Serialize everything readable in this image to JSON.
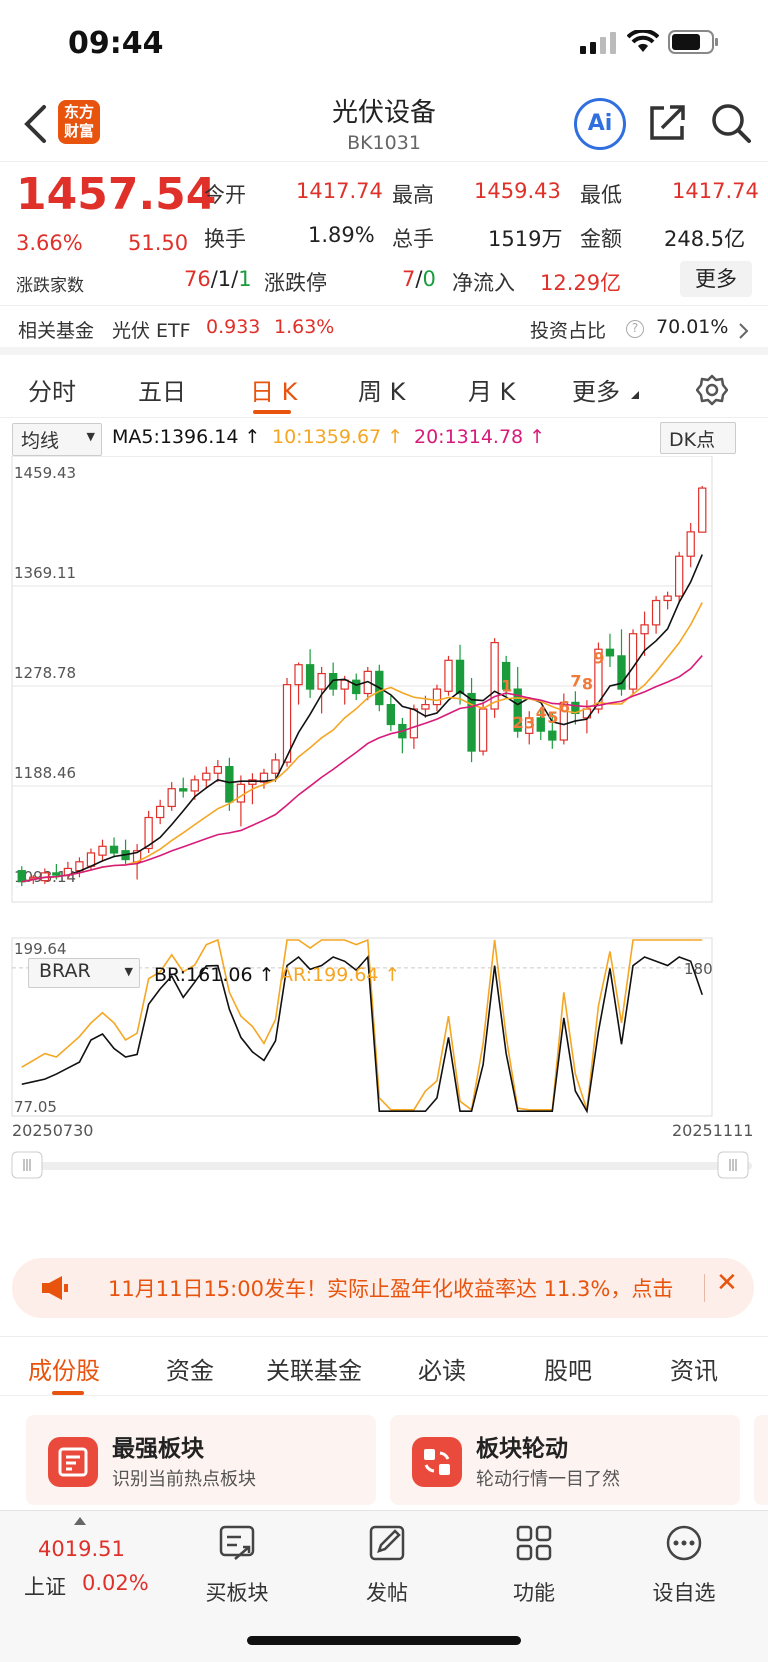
{
  "status": {
    "time": "09:44"
  },
  "nav": {
    "title": "光伏设备",
    "code": "BK1031",
    "ai_label": "Ai",
    "logo_line1": "东方",
    "logo_line2": "财富"
  },
  "quote": {
    "price": "1457.54",
    "pct": "3.66%",
    "chg": "51.50",
    "open_label": "今开",
    "open": "1417.74",
    "high_label": "最高",
    "high": "1459.43",
    "low_label": "最低",
    "low": "1417.74",
    "turnover_label": "换手",
    "turnover": "1.89%",
    "volume_label": "总手",
    "volume": "1519万",
    "amount_label": "金额",
    "amount": "248.5亿",
    "breadth_label": "涨跌家数",
    "breadth_up": "76",
    "breadth_sep1": "/1/",
    "breadth_down": "1",
    "limit_label": "涨跌停",
    "limit_up": "7",
    "limit_sep": "/",
    "limit_down": "0",
    "netflow_label": "净流入",
    "netflow": "12.29亿",
    "more_label": "更多"
  },
  "fund": {
    "label": "相关基金",
    "name": "光伏 ETF",
    "price": "0.933",
    "pct": "1.63%",
    "ratio_label": "投资占比",
    "ratio": "70.01%"
  },
  "ktabs": [
    "分时",
    "五日",
    "日 K",
    "周 K",
    "月 K",
    "更多"
  ],
  "ma": {
    "select": "均线",
    "ma5": "MA5:1396.14",
    "ma10": "10:1359.67",
    "ma20": "20:1314.78",
    "dk": "DK点"
  },
  "brar": {
    "select": "BRAR",
    "br": "BR:161.06",
    "ar": "AR:199.64"
  },
  "chart_data": {
    "type": "candlestick",
    "y_labels": [
      "1459.43",
      "1369.11",
      "1278.78",
      "1188.46",
      "1098.14"
    ],
    "ylim": [
      1098.14,
      1459.43
    ],
    "x_start": "20250730",
    "x_end": "20251111",
    "signals": [
      "1",
      "2",
      "3",
      "4",
      "5",
      "6",
      "7",
      "8",
      "9"
    ],
    "ohlc": [
      [
        1112,
        1116,
        1098,
        1102
      ],
      [
        1105,
        1108,
        1100,
        1106
      ],
      [
        1103,
        1114,
        1100,
        1110
      ],
      [
        1110,
        1118,
        1104,
        1108
      ],
      [
        1108,
        1120,
        1104,
        1114
      ],
      [
        1112,
        1124,
        1106,
        1120
      ],
      [
        1116,
        1132,
        1112,
        1128
      ],
      [
        1126,
        1140,
        1120,
        1134
      ],
      [
        1134,
        1142,
        1124,
        1128
      ],
      [
        1130,
        1140,
        1118,
        1122
      ],
      [
        1120,
        1136,
        1104,
        1130
      ],
      [
        1132,
        1166,
        1128,
        1160
      ],
      [
        1160,
        1176,
        1154,
        1170
      ],
      [
        1170,
        1192,
        1166,
        1186
      ],
      [
        1186,
        1196,
        1178,
        1184
      ],
      [
        1184,
        1198,
        1176,
        1194
      ],
      [
        1194,
        1206,
        1186,
        1200
      ],
      [
        1200,
        1212,
        1192,
        1206
      ],
      [
        1206,
        1214,
        1166,
        1174
      ],
      [
        1174,
        1198,
        1152,
        1190
      ],
      [
        1190,
        1200,
        1172,
        1194
      ],
      [
        1192,
        1204,
        1186,
        1200
      ],
      [
        1200,
        1218,
        1192,
        1212
      ],
      [
        1210,
        1286,
        1206,
        1280
      ],
      [
        1280,
        1300,
        1262,
        1298
      ],
      [
        1298,
        1312,
        1268,
        1276
      ],
      [
        1276,
        1296,
        1254,
        1290
      ],
      [
        1290,
        1300,
        1270,
        1276
      ],
      [
        1276,
        1288,
        1262,
        1284
      ],
      [
        1284,
        1290,
        1266,
        1272
      ],
      [
        1272,
        1296,
        1266,
        1292
      ],
      [
        1292,
        1298,
        1256,
        1262
      ],
      [
        1262,
        1270,
        1238,
        1244
      ],
      [
        1244,
        1250,
        1218,
        1232
      ],
      [
        1232,
        1262,
        1222,
        1258
      ],
      [
        1258,
        1270,
        1250,
        1262
      ],
      [
        1262,
        1280,
        1256,
        1276
      ],
      [
        1274,
        1306,
        1270,
        1302
      ],
      [
        1302,
        1316,
        1262,
        1272
      ],
      [
        1272,
        1286,
        1210,
        1220
      ],
      [
        1220,
        1264,
        1216,
        1258
      ],
      [
        1258,
        1322,
        1250,
        1318
      ],
      [
        1300,
        1306,
        1270,
        1276
      ],
      [
        1276,
        1296,
        1232,
        1238
      ],
      [
        1236,
        1256,
        1226,
        1250
      ],
      [
        1250,
        1258,
        1230,
        1238
      ],
      [
        1238,
        1254,
        1222,
        1230
      ],
      [
        1230,
        1272,
        1226,
        1264
      ],
      [
        1264,
        1274,
        1244,
        1254
      ],
      [
        1250,
        1266,
        1236,
        1258
      ],
      [
        1258,
        1318,
        1254,
        1312
      ],
      [
        1312,
        1326,
        1296,
        1306
      ],
      [
        1306,
        1330,
        1270,
        1276
      ],
      [
        1276,
        1330,
        1272,
        1326
      ],
      [
        1326,
        1346,
        1306,
        1334
      ],
      [
        1334,
        1360,
        1326,
        1356
      ],
      [
        1356,
        1364,
        1348,
        1360
      ],
      [
        1360,
        1400,
        1354,
        1396
      ],
      [
        1396,
        1426,
        1386,
        1418
      ],
      [
        1417.74,
        1459.43,
        1417.74,
        1457.54
      ]
    ],
    "ma5_last": 1396.14,
    "ma10_last": 1359.67,
    "ma20_last": 1314.78,
    "brar": {
      "ylim": [
        77.05,
        199.64
      ],
      "y_labels": [
        "199.64",
        "77.05"
      ],
      "ref_label": "180",
      "br_last": 161.06,
      "ar_last": 199.64
    },
    "colors": {
      "up": "#e0302a",
      "down": "#1a9c3c",
      "ma5": "#111111",
      "ma10": "#f5a623",
      "ma20": "#d81b7a",
      "br": "#111111",
      "ar": "#f5a623"
    }
  },
  "banner": {
    "text": "11月11日15:00发车！实际止盈年化收益率达 11.3%，点击"
  },
  "btabs": [
    "成份股",
    "资金",
    "关联基金",
    "必读",
    "股吧",
    "资讯"
  ],
  "cards": [
    {
      "title": "最强板块",
      "sub": "识别当前热点板块"
    },
    {
      "title": "板块轮动",
      "sub": "轮动行情一目了然"
    }
  ],
  "bottombar": {
    "index_value": "4019.51",
    "index_name": "上证",
    "index_pct": "0.02%",
    "items": [
      "买板块",
      "发帖",
      "功能",
      "设自选"
    ]
  }
}
